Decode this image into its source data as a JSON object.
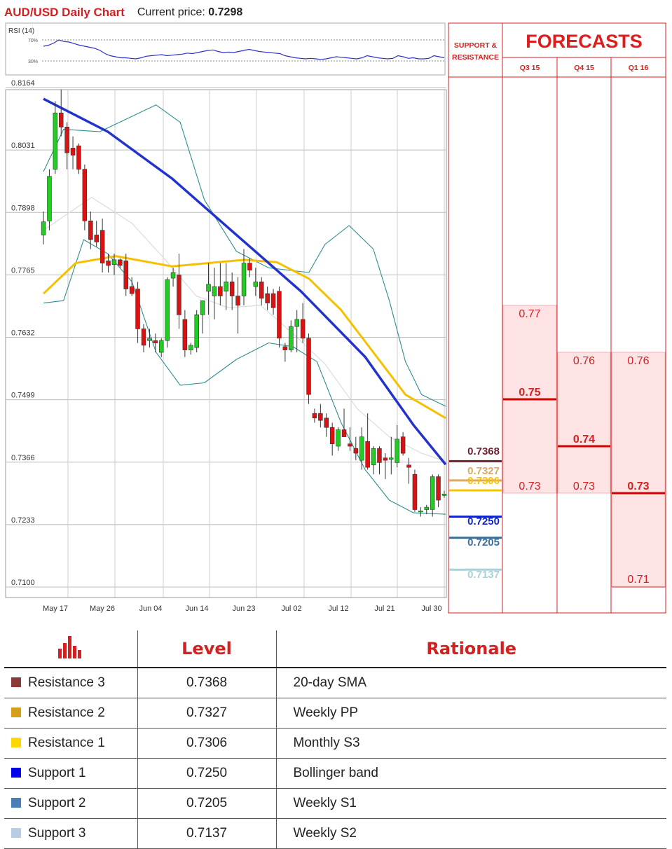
{
  "header": {
    "title": "AUD/USD Daily Chart",
    "price_label": "Current price:",
    "price_value": "0.7298"
  },
  "rsi": {
    "label": "RSI (14)",
    "level_labels": [
      "70%",
      "30%"
    ],
    "values": [
      58,
      60,
      64,
      70,
      67,
      66,
      63,
      60,
      58,
      56,
      54,
      50,
      44,
      40,
      38,
      36,
      36,
      35,
      34,
      36,
      39,
      40,
      41,
      42,
      40,
      41,
      42,
      43,
      45,
      44,
      46,
      48,
      50,
      51,
      48,
      46,
      47,
      46,
      48,
      50,
      52,
      50,
      48,
      47,
      46,
      45,
      44,
      40,
      38,
      36,
      35,
      34,
      35,
      34,
      33,
      34,
      36,
      38,
      37,
      36,
      35,
      34,
      36,
      40,
      38,
      36,
      35,
      34,
      35,
      40,
      38,
      35,
      36,
      34,
      34,
      35,
      40,
      38,
      36
    ]
  },
  "chart_data": {
    "type": "candlestick",
    "title": "AUD/USD Daily Chart",
    "ylim": [
      0.7033,
      0.8189
    ],
    "y_ticks": [
      "0.8164",
      "0.8031",
      "0.7898",
      "0.7765",
      "0.7632",
      "0.7499",
      "0.7366",
      "0.7233",
      "0.7100"
    ],
    "x_labels": [
      "May 17",
      "May 26",
      "Jun 04",
      "Jun 14",
      "Jun 23",
      "Jul 02",
      "Jul 12",
      "Jul 21",
      "Jul 30"
    ],
    "grid": true,
    "candles": [
      {
        "o": 0.785,
        "h": 0.79,
        "l": 0.783,
        "c": 0.7878
      },
      {
        "o": 0.788,
        "h": 0.799,
        "l": 0.786,
        "c": 0.7975
      },
      {
        "o": 0.799,
        "h": 0.8135,
        "l": 0.798,
        "c": 0.811
      },
      {
        "o": 0.811,
        "h": 0.816,
        "l": 0.806,
        "c": 0.808
      },
      {
        "o": 0.808,
        "h": 0.809,
        "l": 0.799,
        "c": 0.8025
      },
      {
        "o": 0.8035,
        "h": 0.806,
        "l": 0.799,
        "c": 0.802
      },
      {
        "o": 0.804,
        "h": 0.8045,
        "l": 0.798,
        "c": 0.799
      },
      {
        "o": 0.799,
        "h": 0.8,
        "l": 0.786,
        "c": 0.788
      },
      {
        "o": 0.788,
        "h": 0.79,
        "l": 0.782,
        "c": 0.784
      },
      {
        "o": 0.785,
        "h": 0.788,
        "l": 0.7825,
        "c": 0.7835
      },
      {
        "o": 0.786,
        "h": 0.7885,
        "l": 0.777,
        "c": 0.779
      },
      {
        "o": 0.7795,
        "h": 0.781,
        "l": 0.777,
        "c": 0.7785
      },
      {
        "o": 0.7787,
        "h": 0.781,
        "l": 0.7765,
        "c": 0.7797
      },
      {
        "o": 0.7797,
        "h": 0.78,
        "l": 0.778,
        "c": 0.7785
      },
      {
        "o": 0.7795,
        "h": 0.781,
        "l": 0.772,
        "c": 0.7735
      },
      {
        "o": 0.774,
        "h": 0.776,
        "l": 0.772,
        "c": 0.7725
      },
      {
        "o": 0.7735,
        "h": 0.775,
        "l": 0.762,
        "c": 0.765
      },
      {
        "o": 0.765,
        "h": 0.766,
        "l": 0.76,
        "c": 0.7615
      },
      {
        "o": 0.7625,
        "h": 0.765,
        "l": 0.761,
        "c": 0.763
      },
      {
        "o": 0.7625,
        "h": 0.764,
        "l": 0.76,
        "c": 0.762
      },
      {
        "o": 0.76,
        "h": 0.763,
        "l": 0.759,
        "c": 0.7625
      },
      {
        "o": 0.7625,
        "h": 0.776,
        "l": 0.761,
        "c": 0.7755
      },
      {
        "o": 0.7758,
        "h": 0.778,
        "l": 0.774,
        "c": 0.777
      },
      {
        "o": 0.7765,
        "h": 0.781,
        "l": 0.765,
        "c": 0.768
      },
      {
        "o": 0.767,
        "h": 0.769,
        "l": 0.759,
        "c": 0.7605
      },
      {
        "o": 0.7605,
        "h": 0.762,
        "l": 0.7595,
        "c": 0.7615
      },
      {
        "o": 0.761,
        "h": 0.769,
        "l": 0.76,
        "c": 0.768
      },
      {
        "o": 0.768,
        "h": 0.771,
        "l": 0.764,
        "c": 0.771
      },
      {
        "o": 0.773,
        "h": 0.779,
        "l": 0.768,
        "c": 0.7745
      },
      {
        "o": 0.772,
        "h": 0.778,
        "l": 0.767,
        "c": 0.774
      },
      {
        "o": 0.774,
        "h": 0.779,
        "l": 0.77,
        "c": 0.772
      },
      {
        "o": 0.773,
        "h": 0.779,
        "l": 0.769,
        "c": 0.775
      },
      {
        "o": 0.775,
        "h": 0.777,
        "l": 0.769,
        "c": 0.772
      },
      {
        "o": 0.772,
        "h": 0.776,
        "l": 0.764,
        "c": 0.77
      },
      {
        "o": 0.772,
        "h": 0.782,
        "l": 0.77,
        "c": 0.779
      },
      {
        "o": 0.779,
        "h": 0.78,
        "l": 0.776,
        "c": 0.7775
      },
      {
        "o": 0.774,
        "h": 0.778,
        "l": 0.772,
        "c": 0.775
      },
      {
        "o": 0.775,
        "h": 0.776,
        "l": 0.77,
        "c": 0.7715
      },
      {
        "o": 0.7725,
        "h": 0.774,
        "l": 0.769,
        "c": 0.7705
      },
      {
        "o": 0.7725,
        "h": 0.7735,
        "l": 0.768,
        "c": 0.7695
      },
      {
        "o": 0.773,
        "h": 0.774,
        "l": 0.761,
        "c": 0.763
      },
      {
        "o": 0.7612,
        "h": 0.762,
        "l": 0.758,
        "c": 0.7605
      },
      {
        "o": 0.7605,
        "h": 0.7668,
        "l": 0.76,
        "c": 0.7655
      },
      {
        "o": 0.7655,
        "h": 0.769,
        "l": 0.76,
        "c": 0.767
      },
      {
        "o": 0.767,
        "h": 0.7705,
        "l": 0.762,
        "c": 0.763
      },
      {
        "o": 0.763,
        "h": 0.764,
        "l": 0.749,
        "c": 0.751
      },
      {
        "o": 0.747,
        "h": 0.748,
        "l": 0.745,
        "c": 0.746
      },
      {
        "o": 0.747,
        "h": 0.749,
        "l": 0.744,
        "c": 0.7455
      },
      {
        "o": 0.746,
        "h": 0.747,
        "l": 0.742,
        "c": 0.744
      },
      {
        "o": 0.744,
        "h": 0.745,
        "l": 0.738,
        "c": 0.7405
      },
      {
        "o": 0.74,
        "h": 0.744,
        "l": 0.739,
        "c": 0.7435
      },
      {
        "o": 0.7435,
        "h": 0.748,
        "l": 0.742,
        "c": 0.742
      },
      {
        "o": 0.7405,
        "h": 0.744,
        "l": 0.739,
        "c": 0.74
      },
      {
        "o": 0.7395,
        "h": 0.742,
        "l": 0.737,
        "c": 0.7385
      },
      {
        "o": 0.737,
        "h": 0.744,
        "l": 0.735,
        "c": 0.742
      },
      {
        "o": 0.741,
        "h": 0.747,
        "l": 0.735,
        "c": 0.7355
      },
      {
        "o": 0.736,
        "h": 0.74,
        "l": 0.734,
        "c": 0.7395
      },
      {
        "o": 0.7395,
        "h": 0.74,
        "l": 0.734,
        "c": 0.7365
      },
      {
        "o": 0.7375,
        "h": 0.7385,
        "l": 0.733,
        "c": 0.737
      },
      {
        "o": 0.7372,
        "h": 0.742,
        "l": 0.734,
        "c": 0.7375
      },
      {
        "o": 0.7365,
        "h": 0.7445,
        "l": 0.7355,
        "c": 0.7415
      },
      {
        "o": 0.742,
        "h": 0.743,
        "l": 0.738,
        "c": 0.7385
      },
      {
        "o": 0.736,
        "h": 0.7375,
        "l": 0.732,
        "c": 0.7355
      },
      {
        "o": 0.734,
        "h": 0.735,
        "l": 0.726,
        "c": 0.7265
      },
      {
        "o": 0.726,
        "h": 0.727,
        "l": 0.725,
        "c": 0.7262
      },
      {
        "o": 0.7265,
        "h": 0.7275,
        "l": 0.7255,
        "c": 0.727
      },
      {
        "o": 0.7265,
        "h": 0.734,
        "l": 0.725,
        "c": 0.7335
      },
      {
        "o": 0.7335,
        "h": 0.734,
        "l": 0.727,
        "c": 0.7285
      },
      {
        "o": 0.7295,
        "h": 0.7305,
        "l": 0.729,
        "c": 0.7298
      }
    ],
    "sma_200": [
      [
        0,
        0.814
      ],
      [
        0.16,
        0.807
      ],
      [
        0.32,
        0.797
      ],
      [
        0.48,
        0.785
      ],
      [
        0.64,
        0.773
      ],
      [
        0.8,
        0.759
      ],
      [
        0.92,
        0.7445
      ],
      [
        1.0,
        0.7361
      ]
    ],
    "sma_100": [
      [
        0,
        0.7725
      ],
      [
        0.08,
        0.779
      ],
      [
        0.18,
        0.7805
      ],
      [
        0.32,
        0.7783
      ],
      [
        0.5,
        0.7797
      ],
      [
        0.58,
        0.7792
      ],
      [
        0.66,
        0.7757
      ],
      [
        0.74,
        0.769
      ],
      [
        0.82,
        0.76
      ],
      [
        0.9,
        0.751
      ],
      [
        1.0,
        0.746
      ]
    ],
    "bb_upper": [
      [
        0,
        0.7985
      ],
      [
        0.05,
        0.8075
      ],
      [
        0.14,
        0.807
      ],
      [
        0.28,
        0.8127
      ],
      [
        0.34,
        0.809
      ],
      [
        0.4,
        0.7925
      ],
      [
        0.48,
        0.7815
      ],
      [
        0.56,
        0.778
      ],
      [
        0.66,
        0.777
      ],
      [
        0.7,
        0.783
      ],
      [
        0.76,
        0.787
      ],
      [
        0.82,
        0.782
      ],
      [
        0.86,
        0.771
      ],
      [
        0.9,
        0.758
      ],
      [
        0.94,
        0.751
      ],
      [
        1.0,
        0.7485
      ]
    ],
    "bb_lower": [
      [
        0,
        0.7705
      ],
      [
        0.05,
        0.771
      ],
      [
        0.1,
        0.784
      ],
      [
        0.16,
        0.781
      ],
      [
        0.22,
        0.775
      ],
      [
        0.28,
        0.76
      ],
      [
        0.34,
        0.753
      ],
      [
        0.4,
        0.7535
      ],
      [
        0.48,
        0.7585
      ],
      [
        0.56,
        0.762
      ],
      [
        0.62,
        0.7612
      ],
      [
        0.68,
        0.758
      ],
      [
        0.74,
        0.745
      ],
      [
        0.8,
        0.735
      ],
      [
        0.86,
        0.7285
      ],
      [
        0.92,
        0.7258
      ],
      [
        1.0,
        0.7255
      ]
    ],
    "bb_middle": [
      [
        0,
        0.786
      ],
      [
        0.12,
        0.793
      ],
      [
        0.22,
        0.7875
      ],
      [
        0.3,
        0.78
      ],
      [
        0.38,
        0.772
      ],
      [
        0.46,
        0.7695
      ],
      [
        0.54,
        0.77
      ],
      [
        0.62,
        0.764
      ],
      [
        0.7,
        0.7575
      ],
      [
        0.78,
        0.748
      ],
      [
        0.86,
        0.742
      ],
      [
        0.94,
        0.7385
      ],
      [
        1.0,
        0.7368
      ]
    ]
  },
  "levels_panel": {
    "header": "SUPPORT & RESISTANCE",
    "items": [
      {
        "label": "0.7368",
        "value": 0.7368,
        "color": "#6b1f2f"
      },
      {
        "label": "0.7327",
        "value": 0.7327,
        "color": "#d9aa62"
      },
      {
        "label": "0.7306",
        "value": 0.7306,
        "color": "#f5c400"
      },
      {
        "label": "0.7250",
        "value": 0.725,
        "color": "#1226c8"
      },
      {
        "label": "0.7205",
        "value": 0.7205,
        "color": "#3d6f9a"
      },
      {
        "label": "0.7137",
        "value": 0.7137,
        "color": "#a8d0d6"
      }
    ]
  },
  "forecasts": {
    "title": "FORECASTS",
    "accent": "#e01b1b",
    "columns": [
      {
        "label": "Q3 15",
        "high": "0.77",
        "mid": "0.75",
        "low": "0.73",
        "high_v": 0.77,
        "mid_v": 0.75,
        "low_v": 0.73,
        "bold": "mid"
      },
      {
        "label": "Q4 15",
        "high": "0.76",
        "mid": "0.74",
        "low": "0.73",
        "high_v": 0.76,
        "mid_v": 0.74,
        "low_v": 0.73,
        "bold": "mid"
      },
      {
        "label": "Q1 16",
        "high": "0.76",
        "mid": "0.73",
        "low": "0.71",
        "high_v": 0.76,
        "mid_v": 0.73,
        "low_v": 0.71,
        "bold": "mid"
      }
    ]
  },
  "table": {
    "icon": "bar-chart-icon",
    "headers": [
      "Level",
      "Rationale"
    ],
    "rows": [
      {
        "name": "Resistance 3",
        "level": "0.7368",
        "rationale": "20-day SMA",
        "color": "#8b3a3a"
      },
      {
        "name": "Resistance 2",
        "level": "0.7327",
        "rationale": "Weekly PP",
        "color": "#d4a017"
      },
      {
        "name": "Resistance 1",
        "level": "0.7306",
        "rationale": "Monthly S3",
        "color": "#ffd700"
      },
      {
        "name": "Support 1",
        "level": "0.7250",
        "rationale": "Bollinger band",
        "color": "#0000ee"
      },
      {
        "name": "Support 2",
        "level": "0.7205",
        "rationale": "Weekly S1",
        "color": "#4a7fb5"
      },
      {
        "name": "Support 3",
        "level": "0.7137",
        "rationale": "Weekly S2",
        "color": "#b8cce4"
      }
    ]
  }
}
